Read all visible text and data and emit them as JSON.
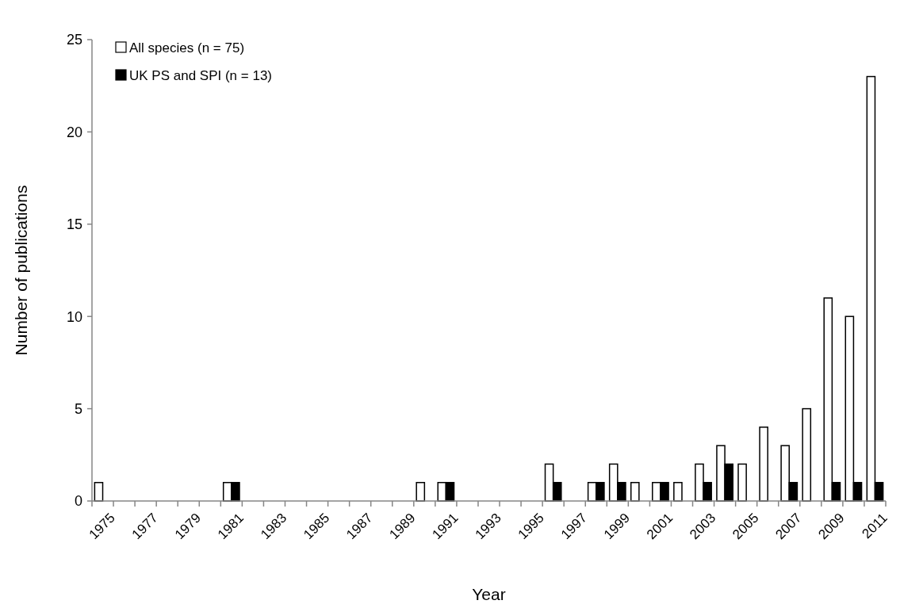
{
  "chart_data": {
    "type": "bar",
    "xlabel": "Year",
    "ylabel": "Number of publications",
    "categories": [
      "1975",
      null,
      "1977",
      null,
      "1979",
      null,
      "1981",
      null,
      "1983",
      null,
      "1985",
      null,
      "1987",
      null,
      "1989",
      null,
      "1991",
      null,
      "1993",
      null,
      "1995",
      null,
      "1997",
      null,
      "1999",
      null,
      "2001",
      null,
      "2003",
      null,
      "2005",
      null,
      "2007",
      null,
      "2009",
      null,
      "2011"
    ],
    "series": [
      {
        "name": "All species (n = 75)",
        "color": "#ffffff",
        "values": [
          1,
          0,
          0,
          0,
          0,
          0,
          1,
          0,
          0,
          0,
          0,
          0,
          0,
          0,
          0,
          1,
          1,
          0,
          0,
          0,
          0,
          2,
          0,
          1,
          2,
          1,
          1,
          1,
          2,
          3,
          2,
          4,
          3,
          5,
          11,
          10,
          23
        ]
      },
      {
        "name": "UK PS and SPI (n = 13)",
        "color": "#000000",
        "values": [
          0,
          0,
          0,
          0,
          0,
          0,
          1,
          0,
          0,
          0,
          0,
          0,
          0,
          0,
          0,
          0,
          1,
          0,
          0,
          0,
          0,
          1,
          0,
          1,
          1,
          0,
          1,
          0,
          1,
          2,
          0,
          0,
          1,
          0,
          1,
          1,
          1
        ]
      }
    ],
    "ylim": [
      0,
      25
    ],
    "yticks": [
      0,
      5,
      10,
      15,
      20,
      25
    ],
    "grid": false,
    "legend": "top left"
  }
}
